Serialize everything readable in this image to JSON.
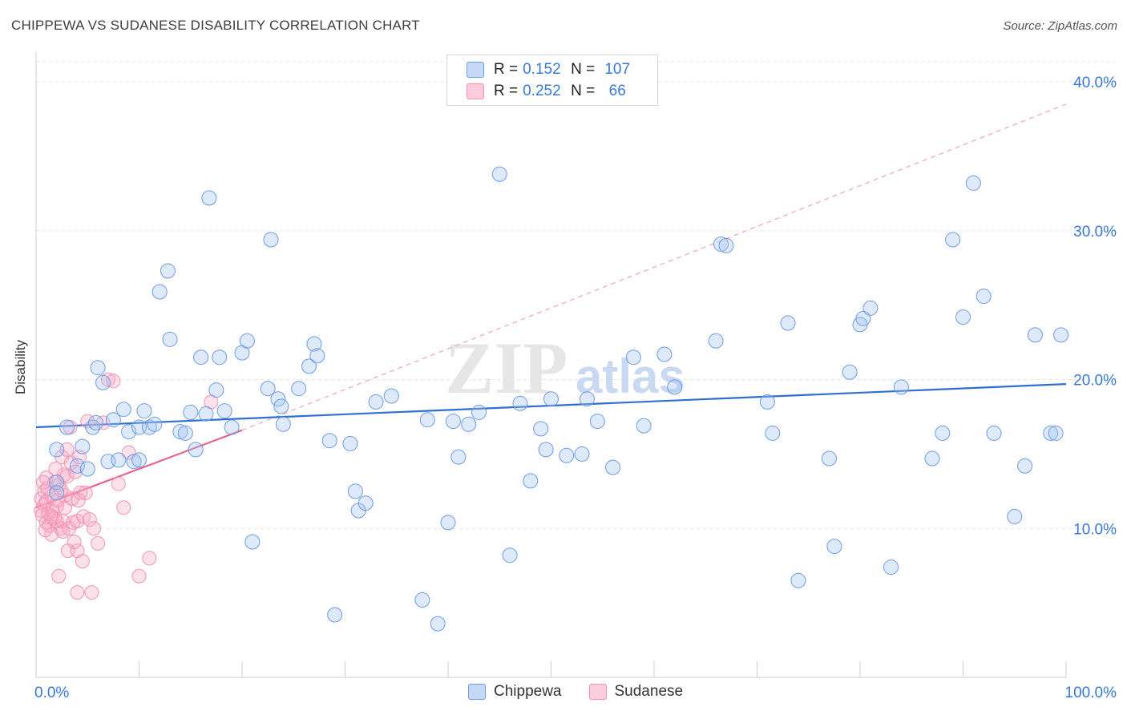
{
  "header": {
    "title": "CHIPPEWA VS SUDANESE DISABILITY CORRELATION CHART",
    "source": "Source: ZipAtlas.com"
  },
  "legend": {
    "rows": [
      {
        "r_label": "R =",
        "r_value": "0.152",
        "n_label": "N =",
        "n_value": "107"
      },
      {
        "r_label": "R =",
        "r_value": "0.252",
        "n_label": "N =",
        "n_value": "66"
      }
    ],
    "bottom": [
      "Chippewa",
      "Sudanese"
    ]
  },
  "watermark": {
    "zip": "ZIP",
    "atlas": "atlas"
  },
  "chart_data": {
    "type": "scatter",
    "title": "CHIPPEWA VS SUDANESE DISABILITY CORRELATION CHART",
    "xlabel": "",
    "ylabel": "Disability",
    "xlim": [
      0,
      100
    ],
    "ylim": [
      0,
      42
    ],
    "x_tick_labels": [
      "0.0%",
      "100.0%"
    ],
    "y_ticks": [
      10,
      20,
      30,
      40
    ],
    "y_tick_labels": [
      "10.0%",
      "20.0%",
      "30.0%",
      "40.0%"
    ],
    "colors": {
      "chippewa": "#6d9be6",
      "sudanese": "#f094b2",
      "chippewa_line": "#2e6fd1",
      "sudanese_line": "#e8628e"
    },
    "series": [
      {
        "name": "Chippewa",
        "trend": {
          "x": [
            0,
            100
          ],
          "y": [
            16.8,
            19.7
          ]
        },
        "points": [
          [
            2,
            13.1
          ],
          [
            4,
            14.2
          ],
          [
            2,
            15.3
          ],
          [
            3,
            16.8
          ],
          [
            4.5,
            15.5
          ],
          [
            5,
            14.0
          ],
          [
            5.5,
            16.8
          ],
          [
            5.8,
            17.1
          ],
          [
            6,
            20.8
          ],
          [
            6.5,
            19.8
          ],
          [
            7,
            14.5
          ],
          [
            7.5,
            17.3
          ],
          [
            8,
            14.6
          ],
          [
            8.5,
            18.0
          ],
          [
            9,
            16.5
          ],
          [
            9.5,
            14.5
          ],
          [
            10,
            16.8
          ],
          [
            10.5,
            17.9
          ],
          [
            11,
            16.8
          ],
          [
            11.5,
            17.0
          ],
          [
            12,
            25.9
          ],
          [
            12.8,
            27.3
          ],
          [
            13,
            22.7
          ],
          [
            14,
            16.5
          ],
          [
            14.5,
            16.4
          ],
          [
            15,
            17.8
          ],
          [
            15.5,
            15.3
          ],
          [
            16,
            21.5
          ],
          [
            16.5,
            17.7
          ],
          [
            16.8,
            32.2
          ],
          [
            17.5,
            19.3
          ],
          [
            17.8,
            21.5
          ],
          [
            18.3,
            17.9
          ],
          [
            19,
            16.8
          ],
          [
            20,
            21.8
          ],
          [
            20.5,
            22.6
          ],
          [
            21,
            9.1
          ],
          [
            22.5,
            19.4
          ],
          [
            22.8,
            29.4
          ],
          [
            23.5,
            18.7
          ],
          [
            23.8,
            18.2
          ],
          [
            24,
            17.0
          ],
          [
            25.5,
            19.4
          ],
          [
            26.5,
            20.9
          ],
          [
            27,
            22.4
          ],
          [
            27.3,
            21.6
          ],
          [
            28.5,
            15.9
          ],
          [
            29,
            4.2
          ],
          [
            30.5,
            15.7
          ],
          [
            31,
            12.5
          ],
          [
            31.3,
            11.2
          ],
          [
            32,
            11.7
          ],
          [
            33,
            18.5
          ],
          [
            34.5,
            18.9
          ],
          [
            37.5,
            5.2
          ],
          [
            38,
            17.3
          ],
          [
            39,
            3.6
          ],
          [
            40,
            10.4
          ],
          [
            40.5,
            17.2
          ],
          [
            41,
            14.8
          ],
          [
            42,
            17.0
          ],
          [
            43,
            17.8
          ],
          [
            45,
            33.8
          ],
          [
            46,
            8.2
          ],
          [
            47,
            18.4
          ],
          [
            49,
            16.7
          ],
          [
            49.5,
            15.3
          ],
          [
            50,
            18.7
          ],
          [
            51.5,
            14.9
          ],
          [
            53,
            15.0
          ],
          [
            53.5,
            18.7
          ],
          [
            54.5,
            17.2
          ],
          [
            56,
            14.1
          ],
          [
            58,
            21.5
          ],
          [
            59,
            16.9
          ],
          [
            61,
            21.7
          ],
          [
            62,
            19.5
          ],
          [
            66,
            22.6
          ],
          [
            66.5,
            29.1
          ],
          [
            67,
            29.0
          ],
          [
            71,
            18.5
          ],
          [
            71.5,
            16.4
          ],
          [
            73,
            23.8
          ],
          [
            74,
            6.5
          ],
          [
            77,
            14.7
          ],
          [
            77.5,
            8.8
          ],
          [
            79,
            20.5
          ],
          [
            80,
            23.7
          ],
          [
            80.3,
            24.1
          ],
          [
            81,
            24.8
          ],
          [
            83,
            7.4
          ],
          [
            84,
            19.5
          ],
          [
            87,
            14.7
          ],
          [
            89,
            29.4
          ],
          [
            90,
            24.2
          ],
          [
            91,
            33.2
          ],
          [
            92,
            25.6
          ],
          [
            93,
            16.4
          ],
          [
            95,
            10.8
          ],
          [
            96,
            14.2
          ],
          [
            97,
            23.0
          ],
          [
            98.5,
            16.4
          ],
          [
            99.5,
            23.0
          ],
          [
            99,
            16.4
          ],
          [
            88,
            16.4
          ],
          [
            2,
            12.4
          ],
          [
            48,
            13.2
          ],
          [
            10,
            14.6
          ]
        ]
      },
      {
        "name": "Sudanese",
        "trend": {
          "x": [
            0,
            20
          ],
          "y": [
            11.4,
            16.6
          ]
        },
        "trend_extended": {
          "x": [
            20,
            100
          ],
          "y": [
            16.6,
            38.5
          ]
        },
        "points": [
          [
            0.5,
            12.0
          ],
          [
            0.5,
            11.2
          ],
          [
            0.6,
            10.9
          ],
          [
            0.8,
            12.5
          ],
          [
            0.8,
            11.6
          ],
          [
            1,
            10.4
          ],
          [
            1,
            13.4
          ],
          [
            1,
            11.8
          ],
          [
            1.2,
            11.0
          ],
          [
            1.3,
            10.2
          ],
          [
            1.5,
            12.2
          ],
          [
            1.5,
            9.6
          ],
          [
            1.6,
            11.2
          ],
          [
            1.8,
            13.1
          ],
          [
            1.8,
            10.7
          ],
          [
            2,
            11.5
          ],
          [
            2,
            10.5
          ],
          [
            2.2,
            12.9
          ],
          [
            2.2,
            6.8
          ],
          [
            2.4,
            10.0
          ],
          [
            2.5,
            14.8
          ],
          [
            2.6,
            9.8
          ],
          [
            2.6,
            10.5
          ],
          [
            2.8,
            11.4
          ],
          [
            2.8,
            12.2
          ],
          [
            3,
            15.3
          ],
          [
            3,
            13.5
          ],
          [
            3.1,
            8.5
          ],
          [
            3.2,
            10.0
          ],
          [
            3.3,
            16.8
          ],
          [
            3.4,
            14.4
          ],
          [
            3.5,
            12.0
          ],
          [
            3.6,
            10.4
          ],
          [
            3.8,
            13.8
          ],
          [
            4,
            5.7
          ],
          [
            4,
            10.5
          ],
          [
            4,
            8.5
          ],
          [
            4.2,
            14.8
          ],
          [
            4.3,
            12.4
          ],
          [
            4.5,
            7.8
          ],
          [
            4.6,
            10.8
          ],
          [
            4.8,
            12.4
          ],
          [
            5,
            17.2
          ],
          [
            5.2,
            10.6
          ],
          [
            5.4,
            5.7
          ],
          [
            6,
            9.0
          ],
          [
            6.5,
            17.1
          ],
          [
            7,
            20.0
          ],
          [
            7.5,
            19.9
          ],
          [
            8,
            13.0
          ],
          [
            8.5,
            11.4
          ],
          [
            9,
            15.1
          ],
          [
            10,
            6.8
          ],
          [
            11,
            8.0
          ],
          [
            17,
            18.5
          ],
          [
            1.5,
            10.8
          ],
          [
            0.9,
            9.9
          ],
          [
            2.1,
            11.9
          ],
          [
            2.7,
            13.6
          ],
          [
            3.7,
            9.1
          ],
          [
            1.1,
            12.7
          ],
          [
            1.9,
            14.0
          ],
          [
            0.7,
            13.1
          ],
          [
            4.1,
            11.9
          ],
          [
            5.6,
            10.0
          ],
          [
            2.4,
            12.6
          ]
        ]
      }
    ]
  }
}
